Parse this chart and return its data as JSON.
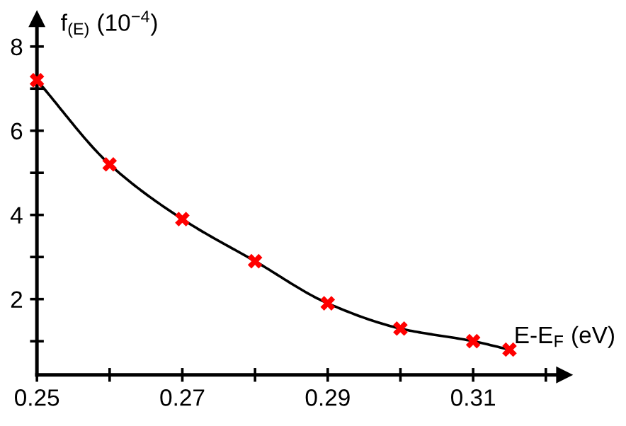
{
  "chart_data": {
    "type": "scatter",
    "xlabel": "E-E$_{F}$ (eV)",
    "ylabel": "f$_{(E)}$ (10$^{−4}$)",
    "x": [
      0.25,
      0.26,
      0.27,
      0.28,
      0.29,
      0.3,
      0.31,
      0.315
    ],
    "series": [
      {
        "type": "line",
        "color": "#000000",
        "marker": "none",
        "line_style": "solid",
        "values": [
          7.2,
          5.2,
          3.9,
          2.9,
          1.9,
          1.3,
          1.0,
          0.8
        ]
      },
      {
        "color": "#ff0000",
        "marker": "cross",
        "values": [
          7.2,
          5.2,
          3.9,
          2.9,
          1.9,
          1.3,
          1.0,
          0.8
        ]
      }
    ],
    "xlim": [
      0.25,
      0.3225
    ],
    "ylim": [
      0.2,
      8.65
    ],
    "xticks": [
      0.25,
      {
        "value": 0.26,
        "label": null
      },
      0.27,
      {
        "value": 0.28,
        "label": null
      },
      0.29,
      {
        "value": 0.3,
        "label": null
      },
      0.31,
      {
        "value": 0.32,
        "label": null
      }
    ],
    "yticks": [
      {
        "value": 1,
        "label": null
      },
      2,
      {
        "value": 3,
        "label": null
      },
      4,
      {
        "value": 5,
        "label": null
      },
      6,
      {
        "value": 7,
        "label": null
      },
      8
    ],
    "grid": false,
    "legend": false
  }
}
